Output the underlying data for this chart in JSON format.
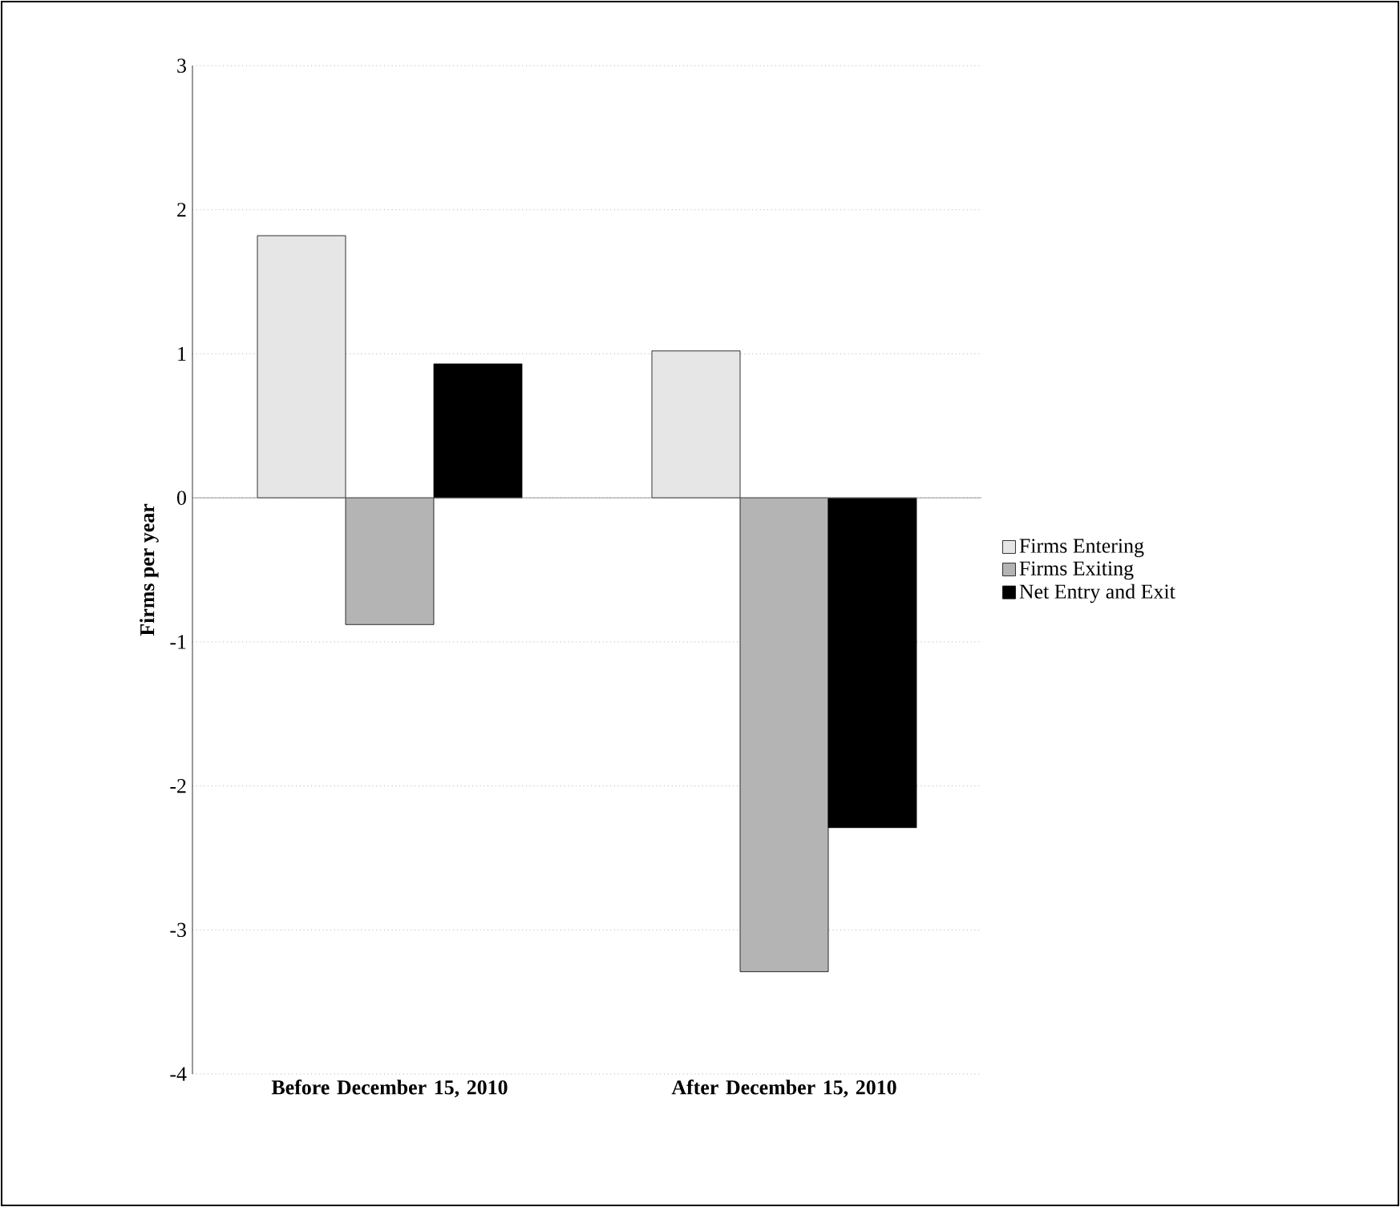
{
  "chart_data": {
    "type": "bar",
    "ylabel": "Firms per year",
    "categories": [
      "Before December 15, 2010",
      "After December 15, 2010"
    ],
    "series": [
      {
        "name": "Firms Entering",
        "color": "#e6e6e6",
        "values": [
          1.82,
          1.02
        ]
      },
      {
        "name": "Firms Exiting",
        "color": "#b4b4b4",
        "values": [
          -0.88,
          -3.29
        ]
      },
      {
        "name": "Net Entry and Exit",
        "color": "#000000",
        "values": [
          0.93,
          -2.29
        ]
      }
    ],
    "ylim": [
      -4,
      3
    ],
    "yticks": [
      -4,
      -3,
      -2,
      -1,
      0,
      1,
      2,
      3
    ],
    "grid": "y",
    "legend": "right"
  }
}
